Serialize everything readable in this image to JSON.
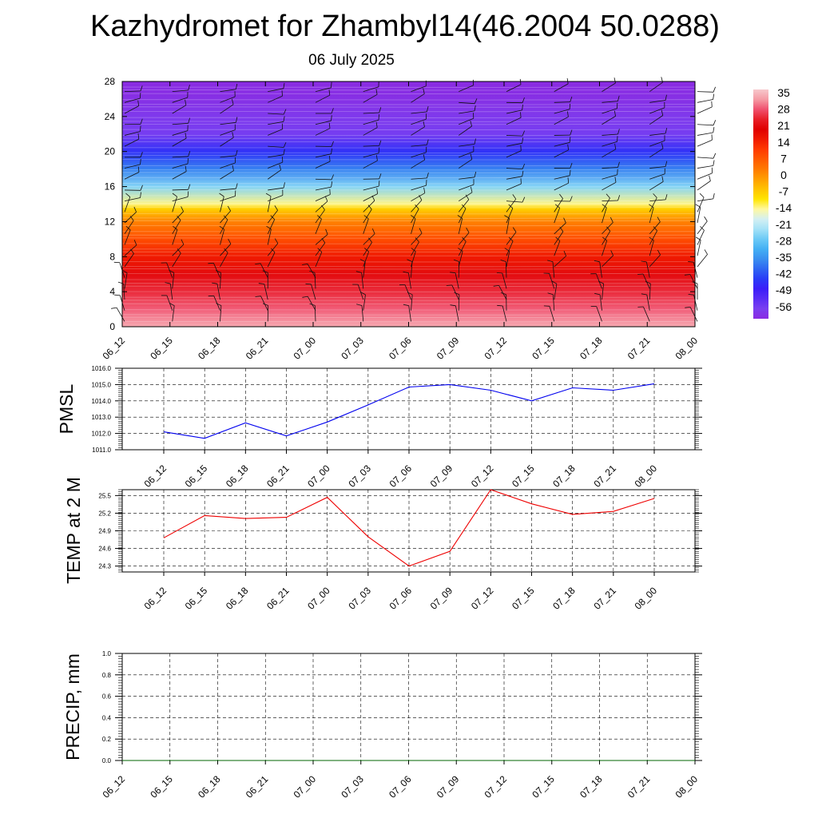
{
  "title": "Kazhydromet for Zhambyl14(46.2004 50.0288)",
  "subtitle": "06 July 2025",
  "colors": {
    "pmsl_line": "#0000ee",
    "temp_line": "#ee0000",
    "precip_line": "#006400",
    "colorbar": [
      "#8a2be2",
      "#7a3ff0",
      "#5a2df5",
      "#3c1ef8",
      "#2a3cf7",
      "#2f66f2",
      "#3a8ff0",
      "#44b0f4",
      "#6ccaf6",
      "#a5e2f7",
      "#d4f0f2",
      "#fff8a0",
      "#ffe500",
      "#ffc300",
      "#ff9f00",
      "#ff7a00",
      "#ff5a00",
      "#ff3a00",
      "#f01a00",
      "#e00000",
      "#e81e28",
      "#f0506e",
      "#f59aa4",
      "#f7c8cc"
    ]
  },
  "chart_data": [
    {
      "type": "heatmap",
      "name_role": "vertical cross-section with wind barbs",
      "xlabel": "",
      "ylabel": "",
      "x_ticks": [
        "06_12",
        "06_15",
        "06_18",
        "06_21",
        "07_00",
        "07_03",
        "07_06",
        "07_09",
        "07_12",
        "07_15",
        "07_18",
        "07_21",
        "08_00"
      ],
      "y_ticks": [
        0,
        4,
        8,
        12,
        16,
        20,
        24,
        28
      ],
      "ylim": [
        0,
        28
      ],
      "colorbar_labels": [
        "35",
        "28",
        "21",
        "14",
        "7",
        "0",
        "-7",
        "-14",
        "-21",
        "-28",
        "-35",
        "-42",
        "-49",
        "-56"
      ],
      "colorbar_range": [
        -63,
        38
      ],
      "temperature_profile": [
        {
          "level": 0,
          "value": 35
        },
        {
          "level": 2,
          "value": 30
        },
        {
          "level": 4,
          "value": 26
        },
        {
          "level": 6,
          "value": 22
        },
        {
          "level": 8,
          "value": 16
        },
        {
          "level": 10,
          "value": 9
        },
        {
          "level": 12,
          "value": 2
        },
        {
          "level": 13.5,
          "value": -8
        },
        {
          "level": 14,
          "value": -14
        },
        {
          "level": 16,
          "value": -26
        },
        {
          "level": 18,
          "value": -38
        },
        {
          "level": 20,
          "value": -47
        },
        {
          "level": 22,
          "value": -58
        },
        {
          "level": 24,
          "value": -60
        },
        {
          "level": 26,
          "value": -62
        },
        {
          "level": 28,
          "value": -63
        }
      ],
      "grid": false
    },
    {
      "type": "line",
      "ylabel": "PMSL",
      "x_ticks": [
        "06_12",
        "06_15",
        "06_18",
        "06_21",
        "07_00",
        "07_03",
        "07_06",
        "07_09",
        "07_12",
        "07_15",
        "07_18",
        "07_21",
        "08_00"
      ],
      "y_ticks": [
        "1011.0",
        "1012.0",
        "1013.0",
        "1014.0",
        "1015.0",
        "1016.0"
      ],
      "ylim": [
        1011.0,
        1016.0
      ],
      "series": [
        {
          "values": [
            1012.1,
            1011.7,
            1012.65,
            1011.85,
            1012.7,
            1013.75,
            1014.85,
            1015.0,
            1014.65,
            1014.0,
            1014.8,
            1014.65,
            1015.05
          ]
        }
      ],
      "grid": true
    },
    {
      "type": "line",
      "ylabel": "TEMP at 2 M",
      "x_ticks": [
        "06_12",
        "06_15",
        "06_18",
        "06_21",
        "07_00",
        "07_03",
        "07_06",
        "07_09",
        "07_12",
        "07_15",
        "07_18",
        "07_21",
        "08_00"
      ],
      "y_ticks": [
        "24.3",
        "24.6",
        "24.9",
        "25.2",
        "25.5"
      ],
      "ylim": [
        24.2,
        25.6
      ],
      "series": [
        {
          "values": [
            24.78,
            25.16,
            25.11,
            25.13,
            25.47,
            24.8,
            24.3,
            24.55,
            25.6,
            25.36,
            25.18,
            25.23,
            25.45
          ]
        }
      ],
      "grid": true
    },
    {
      "type": "line",
      "ylabel": "PRECIP, mm",
      "x_ticks": [
        "06_12",
        "06_15",
        "06_18",
        "06_21",
        "07_00",
        "07_03",
        "07_06",
        "07_09",
        "07_12",
        "07_15",
        "07_18",
        "07_21",
        "08_00"
      ],
      "y_ticks": [
        "0.0",
        "0.2",
        "0.4",
        "0.6",
        "0.8",
        "1.0"
      ],
      "ylim": [
        0.0,
        1.0
      ],
      "series": [
        {
          "values": [
            0,
            0,
            0,
            0,
            0,
            0,
            0,
            0,
            0,
            0,
            0,
            0,
            0
          ]
        }
      ],
      "grid": true
    }
  ]
}
